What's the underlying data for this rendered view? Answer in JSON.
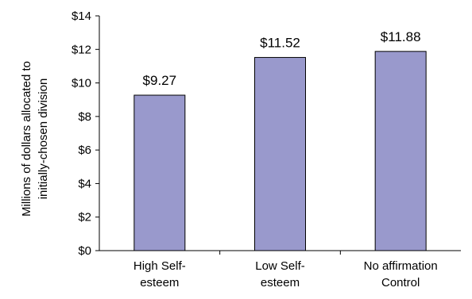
{
  "chart_data": {
    "type": "bar",
    "categories": [
      [
        "High Self-",
        "esteem"
      ],
      [
        "Low Self-",
        "esteem"
      ],
      [
        "No affirmation",
        "Control"
      ]
    ],
    "values": [
      9.27,
      11.52,
      11.88
    ],
    "data_labels": [
      "$9.27",
      "$11.52",
      "$11.88"
    ],
    "ylabel": [
      "Millions of dollars allocated to",
      "initially-chosen  division"
    ],
    "ylim": [
      0,
      14
    ],
    "yticks": [
      0,
      2,
      4,
      6,
      8,
      10,
      12,
      14
    ],
    "ytick_labels": [
      "$0",
      "$2",
      "$4",
      "$6",
      "$8",
      "$10",
      "$12",
      "$14"
    ],
    "grid": false,
    "legend": "none",
    "bar_color": "#9999cc",
    "bar_edge_color": "#000000"
  }
}
